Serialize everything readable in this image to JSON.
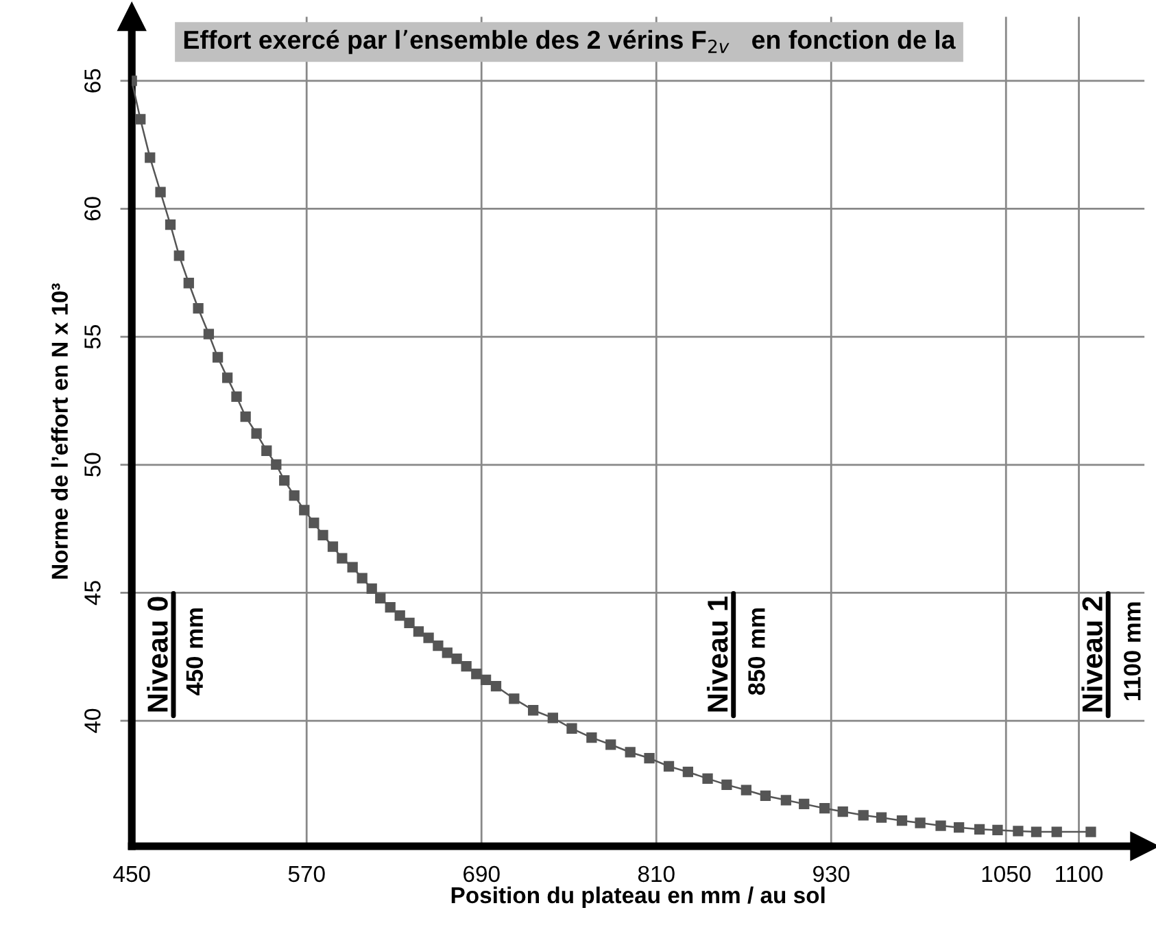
{
  "chart_data": {
    "type": "line",
    "title": "Effort exercé par l’ensemble des 2 vérins F$_{2v}$   en fonction de la",
    "xlabel": "Position du plateau en mm / au sol",
    "ylabel": "Norme de l’effort en N x 10³",
    "x": [
      450,
      455.9,
      462.5,
      469.7,
      476.5,
      482.5,
      489.1,
      495.6,
      502.8,
      509.0,
      515.6,
      521.9,
      528.1,
      535.6,
      542.5,
      549.1,
      554.7,
      561.5,
      568.4,
      575,
      581.2,
      588.0,
      594.3,
      601.5,
      608.1,
      614.7,
      620.6,
      627.4,
      634.0,
      640.5,
      646.8,
      653.7,
      660.2,
      666.5,
      673.0,
      679.6,
      686.5,
      693.0,
      700,
      712.4,
      725.5,
      739,
      752,
      765.6,
      778.7,
      792.1,
      805.2,
      818.6,
      831.7,
      845.2,
      858.3,
      871.7,
      884.9,
      899.0,
      911.4,
      925.5,
      938.0,
      952.1,
      964.5,
      978.6,
      991.1,
      1005.2,
      1017.7,
      1031.8,
      1044.2,
      1058.3,
      1070.8,
      1084.8,
      1108.2
    ],
    "series": [
      {
        "color": "#555555",
        "marker": "square",
        "values": [
          65.0,
          63.5,
          62.0,
          60.65,
          59.38,
          58.17,
          57.1,
          56.11,
          55.11,
          54.2,
          53.4,
          52.66,
          51.88,
          51.22,
          50.55,
          50.01,
          49.39,
          48.8,
          48.23,
          47.73,
          47.25,
          46.8,
          46.35,
          46.0,
          45.57,
          45.16,
          44.79,
          44.43,
          44.11,
          43.82,
          43.49,
          43.24,
          42.93,
          42.66,
          42.42,
          42.13,
          41.83,
          41.6,
          41.35,
          40.86,
          40.41,
          40.11,
          39.7,
          39.34,
          39.07,
          38.77,
          38.54,
          38.22,
          38.0,
          37.74,
          37.5,
          37.29,
          37.07,
          36.9,
          36.75,
          36.58,
          36.45,
          36.31,
          36.22,
          36.1,
          36.01,
          35.9,
          35.83,
          35.76,
          35.73,
          35.69,
          35.66,
          35.66,
          35.66
        ]
      }
    ],
    "xlim": [
      450,
      1145
    ],
    "ylim": [
      35.1,
      67.5
    ],
    "xticks": [
      450,
      570,
      690,
      810,
      930,
      1050,
      1100
    ],
    "yticks": [
      40,
      45,
      50,
      55,
      60,
      65
    ],
    "grid": true,
    "line_style": "solid",
    "annotations": [
      "Niveau 0",
      "450 mm",
      "Niveau 1",
      "850 mm",
      "Niveau 2",
      "1100 mm"
    ]
  }
}
